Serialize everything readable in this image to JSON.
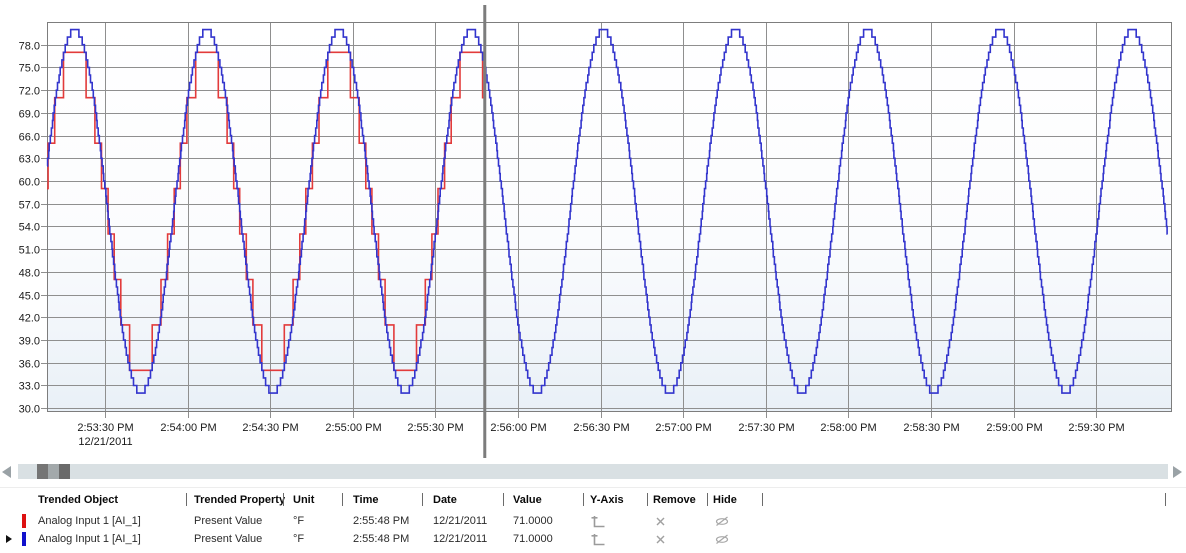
{
  "chart_data": {
    "type": "line",
    "title": "",
    "grid": true,
    "x_axis": {
      "tick_labels": [
        "2:53:30 PM",
        "2:54:00 PM",
        "2:54:30 PM",
        "2:55:00 PM",
        "2:55:30 PM",
        "2:56:00 PM",
        "2:56:30 PM",
        "2:57:00 PM",
        "2:57:30 PM",
        "2:58:00 PM",
        "2:58:30 PM",
        "2:59:00 PM",
        "2:59:30 PM"
      ],
      "date_label": "12/21/2011",
      "tick_interval_s": 30,
      "window_start_s": -21,
      "window_end_s": 388
    },
    "y_axis": {
      "tick_labels": [
        "78.0",
        "75.0",
        "72.0",
        "69.0",
        "66.0",
        "63.0",
        "60.0",
        "57.0",
        "54.0",
        "51.0",
        "48.0",
        "45.0",
        "42.0",
        "39.0",
        "36.0",
        "33.0",
        "30.0"
      ],
      "min": 29.5,
      "max": 81,
      "unit": "°F"
    },
    "cursor": {
      "time": "2:55:48 PM",
      "offset_s": 138,
      "value": "71.0000"
    },
    "series": [
      {
        "name": "Analog Input 1 [AI_1] Present Value",
        "color": "#e23b3b",
        "shape": "step",
        "min": 35,
        "max": 77,
        "quantize_step": 6,
        "period_s": 48,
        "peak_offset_s": -11,
        "start_s": -21,
        "end_s": 138
      },
      {
        "name": "Analog Input 1 [AI_1] Present Value",
        "color": "#3335cd",
        "shape": "step",
        "min": 32,
        "max": 80,
        "quantize_step": 1,
        "period_s": 48,
        "peak_offset_s": -11,
        "start_s": -21,
        "end_s": 386
      }
    ]
  },
  "scrollbar": {
    "left_icon": "left-arrow-icon",
    "right_icon": "right-arrow-icon"
  },
  "table": {
    "columns": [
      {
        "key": "object",
        "label": "Trended Object"
      },
      {
        "key": "property",
        "label": "Trended Property"
      },
      {
        "key": "unit",
        "label": "Unit"
      },
      {
        "key": "time",
        "label": "Time"
      },
      {
        "key": "date",
        "label": "Date"
      },
      {
        "key": "value",
        "label": "Value"
      },
      {
        "key": "yaxis",
        "label": "Y-Axis"
      },
      {
        "key": "remove",
        "label": "Remove"
      },
      {
        "key": "hide",
        "label": "Hide"
      }
    ],
    "rows": [
      {
        "selected": false,
        "color": "#dd1111",
        "object": "Analog Input 1 [AI_1]",
        "property": "Present Value",
        "unit": "°F",
        "time": "2:55:48 PM",
        "date": "12/21/2011",
        "value": "71.0000",
        "yaxis_icon": "y-axis-icon",
        "remove_icon": "x-icon",
        "hide_icon": "eye-slash-icon"
      },
      {
        "selected": true,
        "color": "#1111cc",
        "object": "Analog Input 1 [AI_1]",
        "property": "Present Value",
        "unit": "°F",
        "time": "2:55:48 PM",
        "date": "12/21/2011",
        "value": "71.0000",
        "yaxis_icon": "y-axis-icon",
        "remove_icon": "x-icon",
        "hide_icon": "eye-slash-icon"
      }
    ]
  }
}
